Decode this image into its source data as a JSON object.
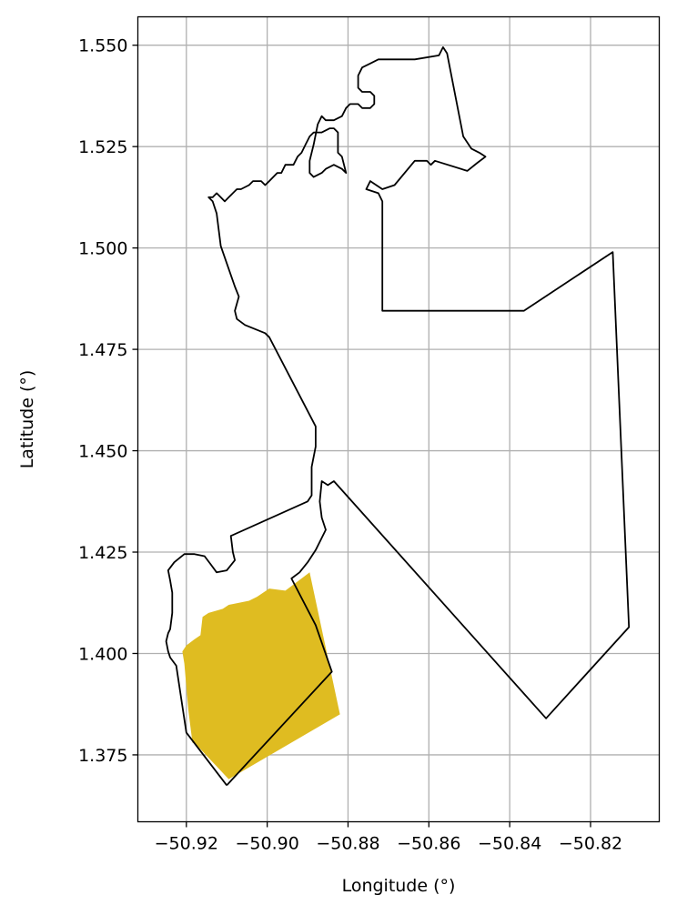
{
  "chart_data": {
    "type": "map",
    "xlabel": "Longitude (°)",
    "ylabel": "Latitude (°)",
    "xlim": [
      -50.932,
      -50.803
    ],
    "ylim": [
      1.3585,
      1.557
    ],
    "grid": true,
    "x_ticks": [
      -50.92,
      -50.9,
      -50.88,
      -50.86,
      -50.84,
      -50.82
    ],
    "x_tick_labels": [
      "−50.92",
      "−50.90",
      "−50.88",
      "−50.86",
      "−50.84",
      "−50.82"
    ],
    "y_ticks": [
      1.375,
      1.4,
      1.425,
      1.45,
      1.475,
      1.5,
      1.525,
      1.55
    ],
    "y_tick_labels": [
      "1.375",
      "1.400",
      "1.425",
      "1.450",
      "1.475",
      "1.500",
      "1.525",
      "1.550"
    ],
    "outline_color": "#000000",
    "fill_color": "#dfbc21",
    "boundary": [
      [
        -50.91,
        1.3675
      ],
      [
        -50.884,
        1.3955
      ],
      [
        -50.888,
        1.407
      ],
      [
        -50.894,
        1.4185
      ],
      [
        -50.892,
        1.42
      ],
      [
        -50.89,
        1.4225
      ],
      [
        -50.888,
        1.4255
      ],
      [
        -50.8865,
        1.4285
      ],
      [
        -50.8855,
        1.4305
      ],
      [
        -50.8865,
        1.4335
      ],
      [
        -50.887,
        1.4375
      ],
      [
        -50.8865,
        1.4425
      ],
      [
        -50.885,
        1.4415
      ],
      [
        -50.8835,
        1.4425
      ],
      [
        -50.831,
        1.384
      ],
      [
        -50.8105,
        1.4065
      ],
      [
        -50.8145,
        1.499
      ],
      [
        -50.8365,
        1.4845
      ],
      [
        -50.8715,
        1.4845
      ],
      [
        -50.8715,
        1.5115
      ],
      [
        -50.8725,
        1.5135
      ],
      [
        -50.8755,
        1.5145
      ],
      [
        -50.8745,
        1.5165
      ],
      [
        -50.8715,
        1.5145
      ],
      [
        -50.8685,
        1.5155
      ],
      [
        -50.8635,
        1.5215
      ],
      [
        -50.8605,
        1.5215
      ],
      [
        -50.8595,
        1.5205
      ],
      [
        -50.8585,
        1.5215
      ],
      [
        -50.8505,
        1.519
      ],
      [
        -50.848,
        1.521
      ],
      [
        -50.846,
        1.5225
      ],
      [
        -50.8475,
        1.5235
      ],
      [
        -50.8495,
        1.5245
      ],
      [
        -50.8515,
        1.5275
      ],
      [
        -50.8555,
        1.548
      ],
      [
        -50.8565,
        1.5495
      ],
      [
        -50.8575,
        1.5475
      ],
      [
        -50.8635,
        1.5465
      ],
      [
        -50.8675,
        1.5465
      ],
      [
        -50.8705,
        1.5465
      ],
      [
        -50.8725,
        1.5465
      ],
      [
        -50.8745,
        1.5455
      ],
      [
        -50.8765,
        1.5445
      ],
      [
        -50.8775,
        1.5425
      ],
      [
        -50.8775,
        1.5395
      ],
      [
        -50.8765,
        1.5385
      ],
      [
        -50.8745,
        1.5385
      ],
      [
        -50.8735,
        1.5375
      ],
      [
        -50.8735,
        1.5355
      ],
      [
        -50.8745,
        1.5345
      ],
      [
        -50.8765,
        1.5345
      ],
      [
        -50.8775,
        1.5355
      ],
      [
        -50.8795,
        1.5355
      ],
      [
        -50.8805,
        1.5345
      ],
      [
        -50.8815,
        1.5325
      ],
      [
        -50.8835,
        1.5315
      ],
      [
        -50.8855,
        1.5315
      ],
      [
        -50.8865,
        1.5325
      ],
      [
        -50.8875,
        1.5305
      ],
      [
        -50.8885,
        1.5255
      ],
      [
        -50.8895,
        1.5215
      ],
      [
        -50.8895,
        1.5185
      ],
      [
        -50.8885,
        1.5175
      ],
      [
        -50.8865,
        1.5185
      ],
      [
        -50.8855,
        1.5195
      ],
      [
        -50.8835,
        1.5205
      ],
      [
        -50.8815,
        1.5195
      ],
      [
        -50.8805,
        1.5185
      ],
      [
        -50.8815,
        1.5225
      ],
      [
        -50.8825,
        1.5235
      ],
      [
        -50.8825,
        1.5285
      ],
      [
        -50.8835,
        1.5295
      ],
      [
        -50.8845,
        1.5295
      ],
      [
        -50.8865,
        1.5285
      ],
      [
        -50.8885,
        1.5285
      ],
      [
        -50.8895,
        1.5275
      ],
      [
        -50.8905,
        1.5255
      ],
      [
        -50.8915,
        1.5235
      ],
      [
        -50.8925,
        1.5225
      ],
      [
        -50.8935,
        1.5205
      ],
      [
        -50.8955,
        1.5205
      ],
      [
        -50.8965,
        1.5185
      ],
      [
        -50.8975,
        1.5185
      ],
      [
        -50.8985,
        1.5175
      ],
      [
        -50.8995,
        1.5165
      ],
      [
        -50.9005,
        1.5155
      ],
      [
        -50.9015,
        1.5165
      ],
      [
        -50.9035,
        1.5165
      ],
      [
        -50.9045,
        1.5155
      ],
      [
        -50.9065,
        1.5145
      ],
      [
        -50.9075,
        1.5145
      ],
      [
        -50.9085,
        1.5135
      ],
      [
        -50.9095,
        1.5125
      ],
      [
        -50.9105,
        1.5115
      ],
      [
        -50.9115,
        1.5125
      ],
      [
        -50.9125,
        1.5135
      ],
      [
        -50.9135,
        1.5125
      ],
      [
        -50.9145,
        1.5125
      ],
      [
        -50.9135,
        1.5115
      ],
      [
        -50.9125,
        1.5085
      ],
      [
        -50.9115,
        1.5005
      ],
      [
        -50.908,
        1.4905
      ],
      [
        -50.907,
        1.488
      ],
      [
        -50.908,
        1.4845
      ],
      [
        -50.9075,
        1.4825
      ],
      [
        -50.9055,
        1.481
      ],
      [
        -50.903,
        1.48
      ],
      [
        -50.9005,
        1.479
      ],
      [
        -50.8995,
        1.478
      ],
      [
        -50.888,
        1.456
      ],
      [
        -50.888,
        1.451
      ],
      [
        -50.889,
        1.446
      ],
      [
        -50.889,
        1.439
      ],
      [
        -50.89,
        1.4375
      ],
      [
        -50.909,
        1.429
      ],
      [
        -50.9085,
        1.425
      ],
      [
        -50.908,
        1.423
      ],
      [
        -50.91,
        1.4205
      ],
      [
        -50.9125,
        1.42
      ],
      [
        -50.914,
        1.422
      ],
      [
        -50.9155,
        1.424
      ],
      [
        -50.918,
        1.4245
      ],
      [
        -50.9205,
        1.4245
      ],
      [
        -50.923,
        1.4225
      ],
      [
        -50.9245,
        1.4205
      ],
      [
        -50.924,
        1.418
      ],
      [
        -50.9235,
        1.415
      ],
      [
        -50.9235,
        1.41
      ],
      [
        -50.924,
        1.406
      ],
      [
        -50.9245,
        1.405
      ],
      [
        -50.925,
        1.403
      ],
      [
        -50.9245,
        1.4005
      ],
      [
        -50.924,
        1.399
      ],
      [
        -50.9225,
        1.397
      ],
      [
        -50.92,
        1.3805
      ],
      [
        -50.91,
        1.3675
      ]
    ],
    "shaded_area": [
      [
        -50.9185,
        1.378
      ],
      [
        -50.9195,
        1.386
      ],
      [
        -50.9205,
        1.3975
      ],
      [
        -50.921,
        1.4005
      ],
      [
        -50.92,
        1.402
      ],
      [
        -50.918,
        1.4035
      ],
      [
        -50.9165,
        1.4045
      ],
      [
        -50.916,
        1.409
      ],
      [
        -50.9145,
        1.41
      ],
      [
        -50.911,
        1.411
      ],
      [
        -50.9095,
        1.412
      ],
      [
        -50.9045,
        1.413
      ],
      [
        -50.9025,
        1.414
      ],
      [
        -50.8995,
        1.416
      ],
      [
        -50.8955,
        1.4155
      ],
      [
        -50.8895,
        1.42
      ],
      [
        -50.882,
        1.385
      ],
      [
        -50.9095,
        1.369
      ],
      [
        -50.918,
        1.378
      ]
    ]
  }
}
